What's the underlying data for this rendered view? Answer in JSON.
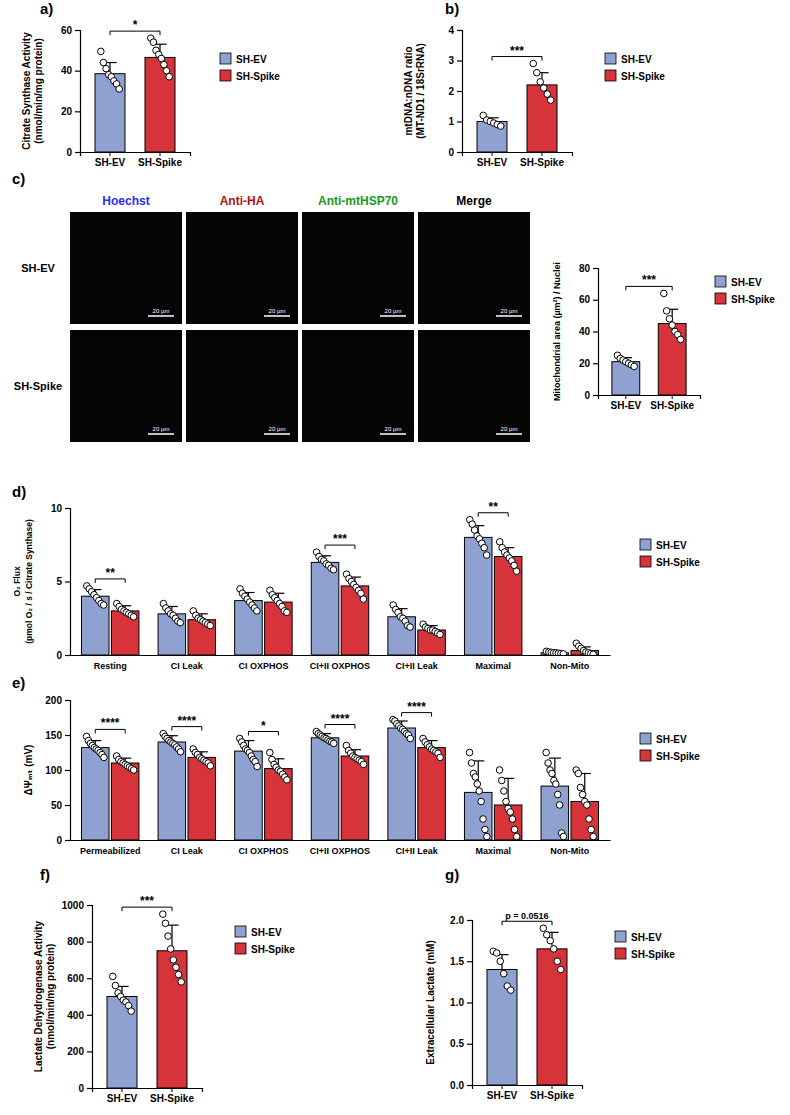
{
  "chart_data": [
    {
      "type": "bar",
      "title": "a)",
      "ylabel": [
        "Citrate Synthase Activity",
        "(nmol/min/mg protein)"
      ],
      "categories": [
        "SH-EV",
        "SH-Spike"
      ],
      "values": [
        38.5,
        46.5
      ],
      "errors": [
        5.5,
        6.5
      ],
      "points": [
        [
          49.5,
          44,
          41,
          38,
          37,
          35,
          33.5,
          31
        ],
        [
          56,
          54,
          50,
          48,
          46,
          43,
          40,
          37
        ]
      ],
      "colors": [
        "#8ea1d0",
        "#d7333b"
      ],
      "significance": "*",
      "ylim": [
        0,
        60
      ],
      "yticks": [
        0,
        20,
        40,
        60
      ],
      "legend": "right"
    },
    {
      "type": "bar",
      "title": "b)",
      "ylabel": [
        "mtDNA:nDNA ratio",
        "(MT-ND1 / 18SrRNA)"
      ],
      "categories": [
        "SH-EV",
        "SH-Spike"
      ],
      "values": [
        1.0,
        2.2
      ],
      "errors": [
        0.12,
        0.4
      ],
      "points": [
        [
          1.2,
          1.05,
          1.0,
          0.95,
          0.9,
          0.85
        ],
        [
          2.9,
          2.6,
          2.3,
          2.1,
          1.9,
          1.7
        ]
      ],
      "colors": [
        "#8ea1d0",
        "#d7333b"
      ],
      "significance": "***",
      "ylim": [
        0,
        4
      ],
      "yticks": [
        0,
        1,
        2,
        3,
        4
      ],
      "legend": "right"
    },
    {
      "type": "bar",
      "ylabel": [
        "Mitochondrial area (µm²) / Nuclei"
      ],
      "categories": [
        "SH-EV",
        "SH-Spike"
      ],
      "values": [
        21,
        45
      ],
      "errors": [
        2.5,
        9
      ],
      "points": [
        [
          25,
          23,
          22,
          21,
          20,
          19,
          18
        ],
        [
          64,
          53,
          48,
          44,
          40,
          38,
          35
        ]
      ],
      "colors": [
        "#8ea1d0",
        "#d7333b"
      ],
      "significance": "***",
      "ylim": [
        0,
        80
      ],
      "yticks": [
        0,
        20,
        40,
        60,
        80
      ],
      "legend": "right"
    },
    {
      "type": "bar",
      "title": "d)",
      "ylabel": [
        "O₂ Flux",
        "(pmol O₂ / s / Citrate Synthase)"
      ],
      "categories": [
        "Resting",
        "CI Leak",
        "CI OXPHOS",
        "CI+II OXPHOS",
        "CI+II Leak",
        "Maximal",
        "Non-Mito"
      ],
      "series": [
        {
          "name": "SH-EV",
          "color": "#8ea1d0",
          "values": [
            4.0,
            2.8,
            3.7,
            6.3,
            2.6,
            8.0,
            0.15
          ],
          "errors": [
            0.45,
            0.5,
            0.55,
            0.45,
            0.55,
            0.8,
            0.05
          ],
          "points": [
            [
              4.7,
              4.5,
              4.3,
              4.1,
              3.9,
              3.7,
              3.5,
              3.4
            ],
            [
              3.5,
              3.2,
              3.0,
              2.8,
              2.7,
              2.5,
              2.3,
              2.2
            ],
            [
              4.5,
              4.2,
              4.0,
              3.8,
              3.6,
              3.4,
              3.2,
              3.0
            ],
            [
              7.0,
              6.7,
              6.5,
              6.4,
              6.2,
              6.1,
              5.9,
              5.8
            ],
            [
              3.4,
              3.1,
              2.9,
              2.6,
              2.5,
              2.3,
              2.0,
              1.9
            ],
            [
              9.2,
              8.9,
              8.5,
              8.1,
              7.9,
              7.6,
              7.3,
              6.8
            ],
            [
              0.25,
              0.2,
              0.18,
              0.15,
              0.14,
              0.12,
              0.1,
              0.08
            ]
          ]
        },
        {
          "name": "SH-Spike",
          "color": "#d7333b",
          "values": [
            3.0,
            2.4,
            3.6,
            4.7,
            1.7,
            6.7,
            0.3
          ],
          "errors": [
            0.35,
            0.4,
            0.6,
            0.6,
            0.3,
            0.6,
            0.25
          ],
          "points": [
            [
              3.5,
              3.3,
              3.1,
              3.0,
              2.9,
              2.8,
              2.7,
              2.6
            ],
            [
              3.0,
              2.7,
              2.5,
              2.4,
              2.3,
              2.2,
              2.1,
              2.0
            ],
            [
              4.4,
              4.1,
              3.9,
              3.7,
              3.5,
              3.3,
              3.0,
              2.9
            ],
            [
              5.5,
              5.2,
              5.0,
              4.8,
              4.6,
              4.4,
              4.2,
              3.8
            ],
            [
              2.1,
              1.9,
              1.8,
              1.7,
              1.7,
              1.6,
              1.5,
              1.4
            ],
            [
              7.7,
              7.3,
              7.0,
              6.8,
              6.6,
              6.4,
              6.1,
              5.7
            ],
            [
              0.8,
              0.6,
              0.45,
              0.3,
              0.2,
              0.15,
              0.1,
              0.05
            ]
          ]
        }
      ],
      "significance": [
        "**",
        null,
        null,
        "***",
        null,
        "**",
        null
      ],
      "ylim": [
        0,
        10
      ],
      "yticks": [
        0,
        5,
        10
      ],
      "legend": "right"
    },
    {
      "type": "bar",
      "title": "e)",
      "ylabel": [
        "ΔΨₘₜ (mV)"
      ],
      "categories": [
        "Permeabilized",
        "CI Leak",
        "CI OXPHOS",
        "CI+II OXPHOS",
        "CI+II Leak",
        "Maximal",
        "Non-Mito"
      ],
      "series": [
        {
          "name": "SH-EV",
          "color": "#8ea1d0",
          "values": [
            132,
            140,
            127,
            146,
            160,
            68,
            77
          ],
          "errors": [
            10,
            9,
            15,
            6,
            10,
            45,
            40
          ],
          "points": [
            [
              148,
              142,
              138,
              135,
              132,
              130,
              128,
              125,
              122,
              118
            ],
            [
              152,
              148,
              145,
              142,
              140,
              138,
              136,
              133,
              130,
              126
            ],
            [
              145,
              140,
              135,
              130,
              128,
              125,
              120,
              115,
              112,
              105
            ],
            [
              155,
              152,
              150,
              148,
              146,
              145,
              143,
              141,
              140,
              138
            ],
            [
              172,
              170,
              166,
              163,
              160,
              158,
              155,
              152,
              150,
              145
            ],
            [
              125,
              110,
              95,
              90,
              80,
              70,
              55,
              30,
              15,
              5
            ],
            [
              125,
              110,
              100,
              95,
              85,
              80,
              65,
              50,
              10,
              5
            ]
          ]
        },
        {
          "name": "SH-Spike",
          "color": "#d7333b",
          "values": [
            110,
            118,
            102,
            120,
            132,
            50,
            55
          ],
          "errors": [
            7,
            8,
            14,
            9,
            10,
            38,
            40
          ],
          "points": [
            [
              120,
              115,
              112,
              110,
              108,
              106,
              104,
              102,
              100
            ],
            [
              130,
              125,
              122,
              118,
              116,
              114,
              112,
              110,
              106
            ],
            [
              125,
              115,
              108,
              104,
              100,
              98,
              94,
              90,
              86
            ],
            [
              135,
              128,
              124,
              120,
              118,
              116,
              114,
              112,
              108
            ],
            [
              145,
              140,
              136,
              133,
              130,
              128,
              126,
              124,
              118
            ],
            [
              100,
              85,
              70,
              55,
              45,
              40,
              30,
              15,
              5
            ],
            [
              100,
              95,
              75,
              65,
              55,
              50,
              30,
              15,
              5
            ]
          ]
        }
      ],
      "significance": [
        "****",
        "****",
        "*",
        "****",
        "****",
        null,
        null
      ],
      "ylim": [
        0,
        200
      ],
      "yticks": [
        0,
        50,
        100,
        150,
        200
      ],
      "legend": "right"
    },
    {
      "type": "bar",
      "title": "f)",
      "ylabel": [
        "Lactate Dehydrogenase Activity",
        "(nmol/min/mg protein)"
      ],
      "categories": [
        "SH-EV",
        "SH-Spike"
      ],
      "values": [
        500,
        750
      ],
      "errors": [
        55,
        140
      ],
      "points": [
        [
          610,
          560,
          520,
          500,
          480,
          470,
          450,
          420
        ],
        [
          950,
          900,
          830,
          760,
          700,
          660,
          620,
          580
        ]
      ],
      "colors": [
        "#8ea1d0",
        "#d7333b"
      ],
      "significance": "***",
      "ylim": [
        0,
        1000
      ],
      "yticks": [
        0,
        200,
        400,
        600,
        800,
        1000
      ],
      "legend": "right"
    },
    {
      "type": "bar",
      "title": "g)",
      "ylabel": [
        "Extracellular Lactate (mM)"
      ],
      "categories": [
        "SH-EV",
        "SH-Spike"
      ],
      "values": [
        1.4,
        1.65
      ],
      "errors": [
        0.18,
        0.2
      ],
      "points": [
        [
          1.62,
          1.6,
          1.5,
          1.35,
          1.2,
          1.15
        ],
        [
          1.9,
          1.82,
          1.75,
          1.65,
          1.5,
          1.4
        ]
      ],
      "colors": [
        "#8ea1d0",
        "#d7333b"
      ],
      "significance": "p = 0.0516",
      "ylim": [
        0,
        2
      ],
      "yticks": [
        {
          "value": 0,
          "label": "0.0"
        },
        {
          "value": 0.5,
          "label": "0.5"
        },
        {
          "value": 1,
          "label": "1.0"
        },
        {
          "value": 1.5,
          "label": "1.5"
        },
        {
          "value": 2,
          "label": "2.0"
        }
      ],
      "legend": "right"
    }
  ],
  "micrographs": {
    "title": "c)",
    "columns": [
      {
        "label": "Hoechst",
        "color": "#2a2aff"
      },
      {
        "label": "Anti-HA",
        "color": "#b01010"
      },
      {
        "label": "Anti-mtHSP70",
        "color": "#1a9a1a"
      },
      {
        "label": "Merge",
        "color": "#000000"
      }
    ],
    "rows": [
      "SH-EV",
      "SH-Spike"
    ],
    "scale_bar": "20 µm"
  }
}
